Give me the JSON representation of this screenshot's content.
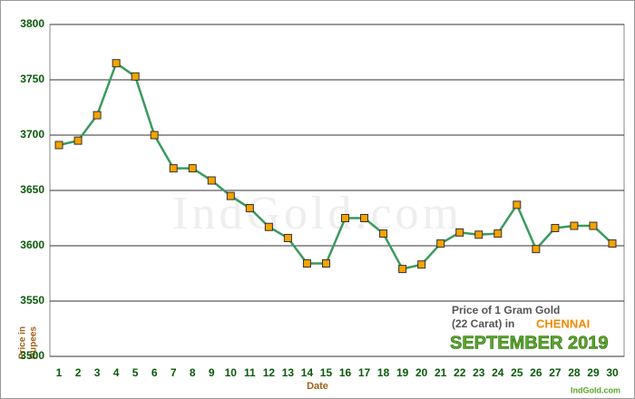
{
  "chart_data": {
    "type": "line",
    "y_label": [
      "Price in",
      "Rupees"
    ],
    "x_label": "Date",
    "watermark": "IndGold.com",
    "source": "IndGold.com",
    "annotation": {
      "line1": "Price of 1 Gram Gold",
      "line2": "(22 Carat) in",
      "city": "CHENNAI",
      "month": "SEPTEMBER 2019"
    },
    "categories": [
      "1",
      "2",
      "3",
      "4",
      "5",
      "6",
      "7",
      "8",
      "9",
      "10",
      "11",
      "12",
      "13",
      "14",
      "15",
      "16",
      "17",
      "18",
      "19",
      "20",
      "21",
      "22",
      "23",
      "24",
      "25",
      "26",
      "27",
      "28",
      "29",
      "30"
    ],
    "values": [
      3691,
      3695,
      3718,
      3765,
      3753,
      3700,
      3670,
      3670,
      3659,
      3645,
      3634,
      3617,
      3607,
      3584,
      3584,
      3625,
      3625,
      3611,
      3579,
      3583,
      3602,
      3612,
      3610,
      3611,
      3637,
      3597,
      3616,
      3618,
      3618,
      3602
    ],
    "color": "#3a9a5e",
    "marker_color": "#f5a300",
    "ylim": [
      3500,
      3800
    ],
    "yticks": [
      3500,
      3550,
      3600,
      3650,
      3700,
      3750,
      3800
    ],
    "grid": true
  }
}
